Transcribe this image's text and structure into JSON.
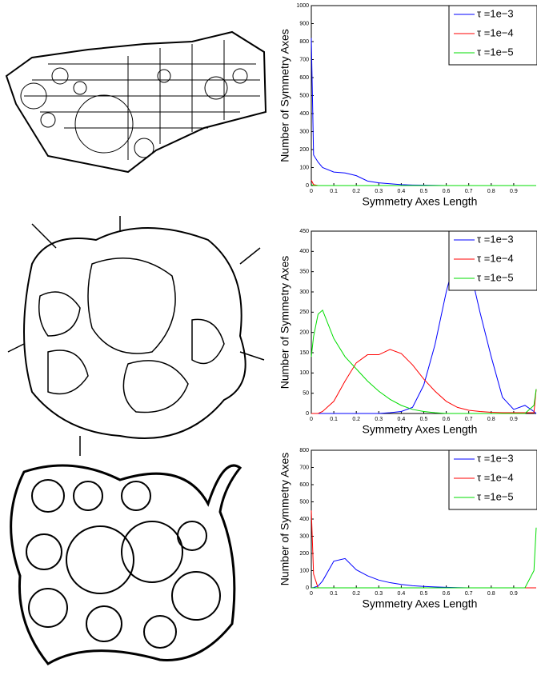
{
  "chart_data": [
    {
      "type": "line",
      "xlabel": "Symmetry Axes Length",
      "ylabel": "Number of Symmetry Axes",
      "x": [
        0,
        0.01,
        0.03,
        0.05,
        0.1,
        0.15,
        0.2,
        0.25,
        0.3,
        0.35,
        0.4,
        0.45,
        0.5,
        0.55,
        0.6,
        0.65,
        0.7,
        0.75,
        0.8,
        0.85,
        0.9,
        0.95,
        0.99,
        1
      ],
      "series": [
        {
          "name": "τ =1e−3",
          "color": "#0000ff",
          "values": [
            820,
            170,
            130,
            100,
            75,
            70,
            55,
            25,
            15,
            10,
            5,
            3,
            2,
            1,
            0,
            0,
            0,
            0,
            0,
            0,
            0,
            0,
            0,
            0
          ]
        },
        {
          "name": "τ =1e−4",
          "color": "#ff0000",
          "values": [
            30,
            5,
            0,
            0,
            0,
            0,
            0,
            0,
            0,
            0,
            0,
            0,
            0,
            0,
            0,
            0,
            0,
            0,
            0,
            0,
            0,
            0,
            0,
            0
          ]
        },
        {
          "name": "τ =1e−5",
          "color": "#00dd00",
          "values": [
            5,
            0,
            0,
            0,
            0,
            0,
            0,
            0,
            0,
            0,
            0,
            0,
            0,
            0,
            0,
            0,
            0,
            0,
            0,
            0,
            0,
            0,
            0,
            0
          ]
        }
      ],
      "xlim": [
        0,
        1
      ],
      "xticks": [
        0,
        0.1,
        0.2,
        0.3,
        0.4,
        0.5,
        0.6,
        0.7,
        0.8,
        0.9
      ],
      "ylim": [
        0,
        1000
      ],
      "yticks": [
        0,
        100,
        200,
        300,
        400,
        500,
        600,
        700,
        800,
        900,
        1000
      ],
      "legend": "upper right"
    },
    {
      "type": "line",
      "xlabel": "Symmetry Axes Length",
      "ylabel": "Number of Symmetry Axes",
      "x": [
        0,
        0.01,
        0.03,
        0.05,
        0.1,
        0.15,
        0.2,
        0.25,
        0.3,
        0.35,
        0.4,
        0.45,
        0.5,
        0.55,
        0.6,
        0.65,
        0.7,
        0.75,
        0.8,
        0.85,
        0.9,
        0.95,
        0.99,
        1
      ],
      "series": [
        {
          "name": "τ =1e−3",
          "color": "#0000ff",
          "values": [
            0,
            0,
            0,
            0,
            0,
            0,
            0,
            0,
            0,
            2,
            5,
            15,
            70,
            170,
            300,
            405,
            370,
            250,
            140,
            40,
            10,
            20,
            5,
            0
          ]
        },
        {
          "name": "τ =1e−4",
          "color": "#ff0000",
          "values": [
            0,
            0,
            0,
            5,
            30,
            80,
            125,
            145,
            145,
            158,
            148,
            120,
            85,
            55,
            30,
            15,
            8,
            5,
            3,
            2,
            2,
            2,
            2,
            60
          ]
        },
        {
          "name": "τ =1e−5",
          "color": "#00dd00",
          "values": [
            140,
            190,
            245,
            255,
            185,
            140,
            110,
            80,
            55,
            35,
            20,
            10,
            5,
            2,
            0,
            0,
            0,
            0,
            0,
            0,
            0,
            0,
            20,
            60
          ]
        }
      ],
      "xlim": [
        0,
        1
      ],
      "xticks": [
        0,
        0.1,
        0.2,
        0.3,
        0.4,
        0.5,
        0.6,
        0.7,
        0.8,
        0.9
      ],
      "ylim": [
        0,
        450
      ],
      "yticks": [
        0,
        50,
        100,
        150,
        200,
        250,
        300,
        350,
        400,
        450
      ],
      "legend": "upper right"
    },
    {
      "type": "line",
      "xlabel": "Symmetry Axes Length",
      "ylabel": "Number of Symmetry Axes",
      "x": [
        0,
        0.01,
        0.03,
        0.05,
        0.1,
        0.15,
        0.2,
        0.25,
        0.3,
        0.35,
        0.4,
        0.45,
        0.5,
        0.55,
        0.6,
        0.65,
        0.7,
        0.75,
        0.8,
        0.85,
        0.9,
        0.95,
        0.99,
        1
      ],
      "series": [
        {
          "name": "τ =1e−3",
          "color": "#0000ff",
          "values": [
            0,
            2,
            10,
            40,
            155,
            170,
            105,
            70,
            45,
            30,
            20,
            12,
            8,
            5,
            3,
            1,
            0,
            0,
            0,
            0,
            0,
            0,
            0,
            0
          ]
        },
        {
          "name": "τ =1e−4",
          "color": "#ff0000",
          "values": [
            450,
            80,
            0,
            0,
            0,
            0,
            0,
            0,
            0,
            0,
            0,
            0,
            0,
            0,
            0,
            0,
            0,
            0,
            0,
            0,
            0,
            0,
            0,
            0
          ]
        },
        {
          "name": "τ =1e−5",
          "color": "#00dd00",
          "values": [
            0,
            0,
            0,
            0,
            0,
            0,
            0,
            0,
            0,
            0,
            0,
            0,
            0,
            0,
            0,
            0,
            0,
            0,
            0,
            0,
            0,
            0,
            100,
            350
          ]
        }
      ],
      "xlim": [
        0,
        1
      ],
      "xticks": [
        0,
        0.1,
        0.2,
        0.3,
        0.4,
        0.5,
        0.6,
        0.7,
        0.8,
        0.9
      ],
      "ylim": [
        0,
        800
      ],
      "yticks": [
        0,
        100,
        200,
        300,
        400,
        500,
        600,
        700,
        800
      ],
      "legend": "upper right"
    }
  ]
}
